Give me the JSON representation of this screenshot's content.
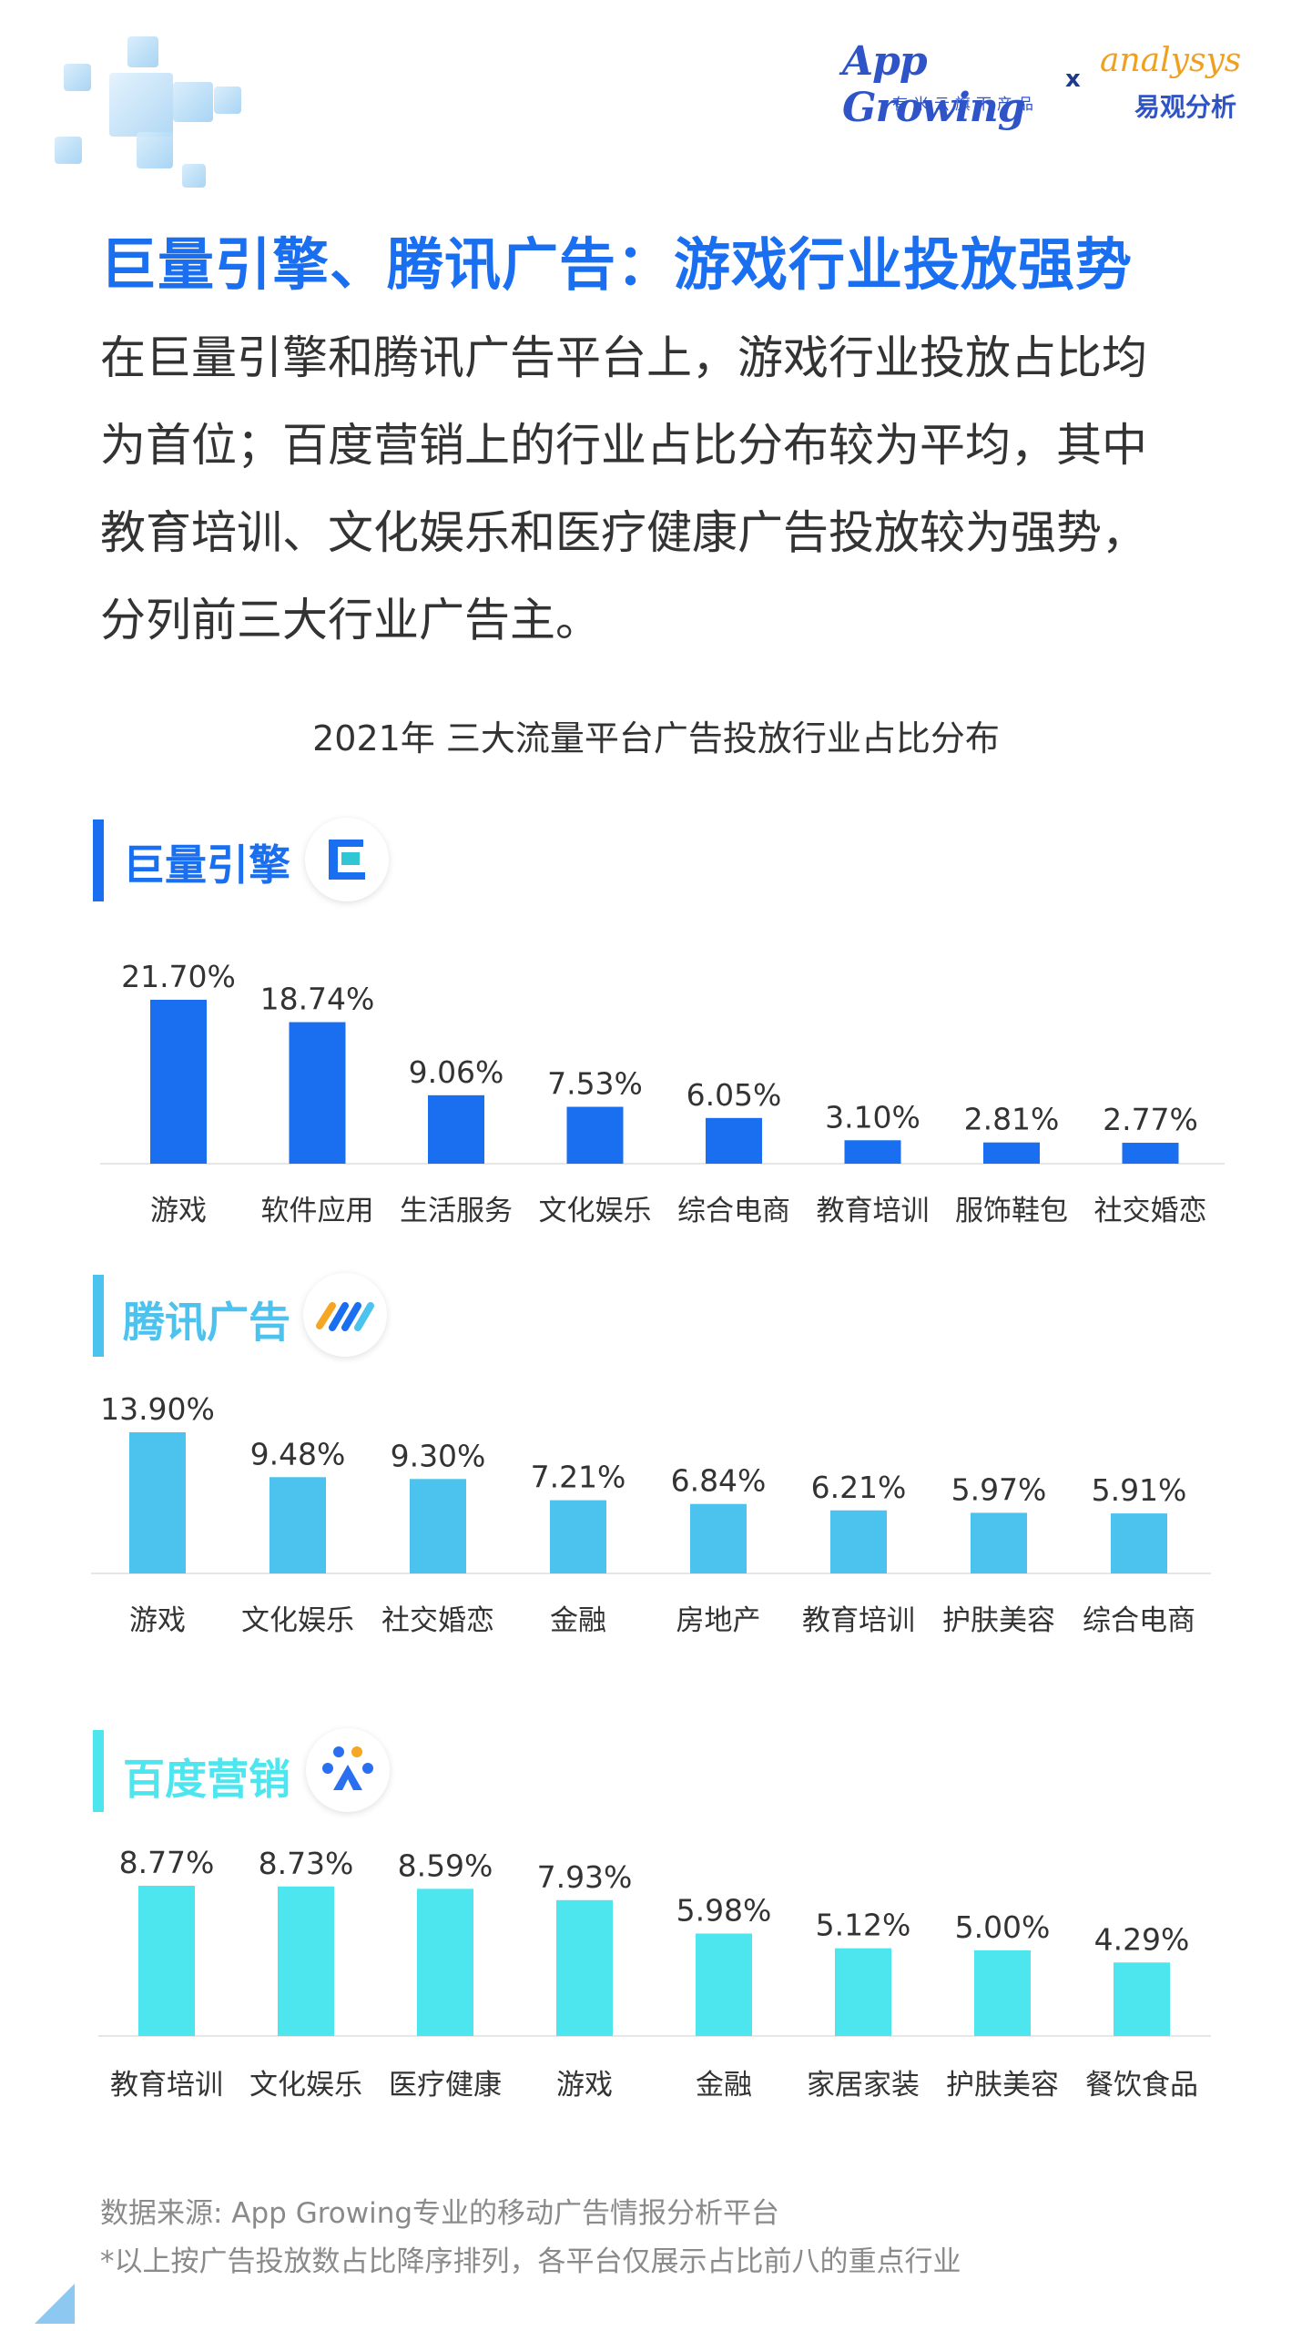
{
  "header": {
    "logo_appgrowing": "App Growing",
    "logo_appgrowing_sub": "有米云旗下产品",
    "logo_separator": "x",
    "logo_analysys": "analysys",
    "logo_analysys_sub": "易观分析"
  },
  "headline": "巨量引擎、腾讯广告：游戏行业投放强势",
  "body_lines": [
    "在巨量引擎和腾讯广告平台上，游戏行业投放占比均",
    "为首位；百度营销上的行业占比分布较为平均，其中",
    "教育培训、文化娱乐和医疗健康广告投放较为强势，",
    "分列前三大行业广告主。"
  ],
  "chart_title": "2021年 三大流量平台广告投放行业占比分布",
  "colors": {
    "headline": "#1a6ff0",
    "juliang": "#1a6ff0",
    "tencent": "#4cc2ef",
    "baidu": "#4de6ef"
  },
  "sections": {
    "juliang": {
      "title": "巨量引擎",
      "icon": "juliang-logo-icon"
    },
    "tencent": {
      "title": "腾讯广告",
      "icon": "tencent-ads-logo-icon"
    },
    "baidu": {
      "title": "百度营销",
      "icon": "baidu-marketing-logo-icon"
    }
  },
  "chart_data": [
    {
      "type": "bar",
      "title": "巨量引擎",
      "categories": [
        "游戏",
        "软件应用",
        "生活服务",
        "文化娱乐",
        "综合电商",
        "教育培训",
        "服饰鞋包",
        "社交婚恋"
      ],
      "values": [
        21.7,
        18.74,
        9.06,
        7.53,
        6.05,
        3.1,
        2.81,
        2.77
      ],
      "labels": [
        "21.70%",
        "18.74%",
        "9.06%",
        "7.53%",
        "6.05%",
        "3.10%",
        "2.81%",
        "2.77%"
      ],
      "unit": "%",
      "color": "#1a6ff0"
    },
    {
      "type": "bar",
      "title": "腾讯广告",
      "categories": [
        "游戏",
        "文化娱乐",
        "社交婚恋",
        "金融",
        "房地产",
        "教育培训",
        "护肤美容",
        "综合电商"
      ],
      "values": [
        13.9,
        9.48,
        9.3,
        7.21,
        6.84,
        6.21,
        5.97,
        5.91
      ],
      "labels": [
        "13.90%",
        "9.48%",
        "9.30%",
        "7.21%",
        "6.84%",
        "6.21%",
        "5.97%",
        "5.91%"
      ],
      "unit": "%",
      "color": "#4cc2ef"
    },
    {
      "type": "bar",
      "title": "百度营销",
      "categories": [
        "教育培训",
        "文化娱乐",
        "医疗健康",
        "游戏",
        "金融",
        "家居家装",
        "护肤美容",
        "餐饮食品"
      ],
      "values": [
        8.77,
        8.73,
        8.59,
        7.93,
        5.98,
        5.12,
        5.0,
        4.29
      ],
      "labels": [
        "8.77%",
        "8.73%",
        "8.59%",
        "7.93%",
        "5.98%",
        "5.12%",
        "5.00%",
        "4.29%"
      ],
      "unit": "%",
      "color": "#4de6ef"
    }
  ],
  "footnotes": [
    "数据来源: App Growing专业的移动广告情报分析平台",
    "*以上按广告投放数占比降序排列，各平台仅展示占比前八的重点行业"
  ]
}
